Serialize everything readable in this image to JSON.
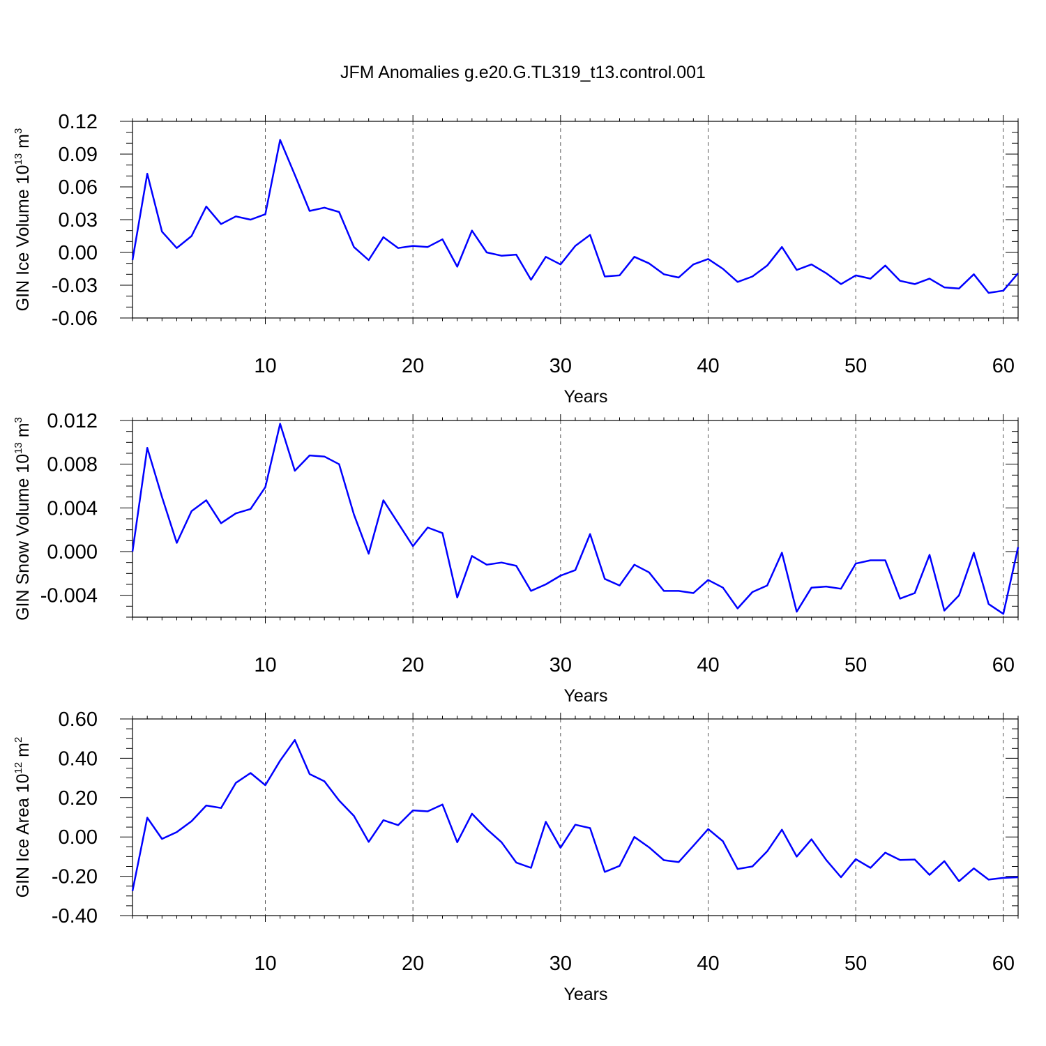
{
  "title": "JFM Anomalies g.e20.G.TL319_t13.control.001",
  "colors": {
    "line": "#0000ff",
    "axis": "#000000",
    "grid": "#555555"
  },
  "chart_data": [
    {
      "type": "line",
      "id": "ice-volume",
      "ylabel_main": "GIN Ice Volume 10",
      "ylabel_exp": "13",
      "ylabel_unit": " m",
      "ylabel_unit_exp": "3",
      "xlabel": "Years",
      "xlim": [
        1,
        61
      ],
      "ylim": [
        -0.06,
        0.12
      ],
      "x_ticks": [
        10,
        20,
        30,
        40,
        50,
        60
      ],
      "x_tick_labels": [
        "10",
        "20",
        "30",
        "40",
        "50",
        "60"
      ],
      "y_ticks": [
        -0.06,
        -0.03,
        0.0,
        0.03,
        0.06,
        0.09,
        0.12
      ],
      "y_tick_labels": [
        "-0.06",
        "-0.03",
        "0.00",
        "0.03",
        "0.06",
        "0.09",
        "0.12"
      ],
      "y_minor_step": 0.01,
      "grid": "vertical dashed",
      "series": [
        {
          "name": "GIN Ice Volume",
          "values": [
            -0.007,
            0.072,
            0.019,
            0.004,
            0.015,
            0.042,
            0.026,
            0.033,
            0.03,
            0.035,
            0.103,
            0.071,
            0.038,
            0.041,
            0.037,
            0.005,
            -0.007,
            0.014,
            0.004,
            0.006,
            0.005,
            0.012,
            -0.013,
            0.02,
            0.0,
            -0.003,
            -0.002,
            -0.025,
            -0.004,
            -0.011,
            0.006,
            0.016,
            -0.022,
            -0.021,
            -0.004,
            -0.01,
            -0.02,
            -0.023,
            -0.011,
            -0.006,
            -0.015,
            -0.027,
            -0.022,
            -0.012,
            0.005,
            -0.016,
            -0.011,
            -0.019,
            -0.029,
            -0.021,
            -0.024,
            -0.012,
            -0.026,
            -0.029,
            -0.024,
            -0.032,
            -0.033,
            -0.02,
            -0.037,
            -0.035,
            -0.019
          ]
        }
      ]
    },
    {
      "type": "line",
      "id": "snow-volume",
      "ylabel_main": "GIN Snow Volume 10",
      "ylabel_exp": "13",
      "ylabel_unit": " m",
      "ylabel_unit_exp": "3",
      "xlabel": "Years",
      "xlim": [
        1,
        61
      ],
      "ylim": [
        -0.006,
        0.012
      ],
      "x_ticks": [
        10,
        20,
        30,
        40,
        50,
        60
      ],
      "x_tick_labels": [
        "10",
        "20",
        "30",
        "40",
        "50",
        "60"
      ],
      "y_ticks": [
        -0.004,
        0.0,
        0.004,
        0.008,
        0.012
      ],
      "y_tick_labels": [
        "-0.004",
        "0.000",
        "0.004",
        "0.008",
        "0.012"
      ],
      "y_minor_step": 0.001,
      "grid": "vertical dashed",
      "series": [
        {
          "name": "GIN Snow Volume",
          "values": [
            0.0,
            0.0095,
            0.005,
            0.0008,
            0.0037,
            0.0047,
            0.0026,
            0.0035,
            0.0039,
            0.0059,
            0.0117,
            0.0074,
            0.0088,
            0.0087,
            0.008,
            0.0034,
            -0.0002,
            0.0047,
            0.0026,
            0.0005,
            0.0022,
            0.0017,
            -0.0042,
            -0.0004,
            -0.0012,
            -0.001,
            -0.0013,
            -0.0036,
            -0.003,
            -0.0022,
            -0.0017,
            0.0016,
            -0.0025,
            -0.0031,
            -0.0012,
            -0.0019,
            -0.0036,
            -0.0036,
            -0.0038,
            -0.0026,
            -0.0033,
            -0.0052,
            -0.0037,
            -0.0031,
            -0.0001,
            -0.0055,
            -0.0033,
            -0.0032,
            -0.0034,
            -0.0011,
            -0.0008,
            -0.0008,
            -0.0043,
            -0.0038,
            -0.0003,
            -0.0054,
            -0.004,
            -0.0001,
            -0.0048,
            -0.0057,
            0.0004
          ]
        }
      ]
    },
    {
      "type": "line",
      "id": "ice-area",
      "ylabel_main": "GIN Ice Area 10",
      "ylabel_exp": "12",
      "ylabel_unit": " m",
      "ylabel_unit_exp": "2",
      "xlabel": "Years",
      "xlim": [
        1,
        61
      ],
      "ylim": [
        -0.4,
        0.6
      ],
      "x_ticks": [
        10,
        20,
        30,
        40,
        50,
        60
      ],
      "x_tick_labels": [
        "10",
        "20",
        "30",
        "40",
        "50",
        "60"
      ],
      "y_ticks": [
        -0.4,
        -0.2,
        0.0,
        0.2,
        0.4,
        0.6
      ],
      "y_tick_labels": [
        "-0.40",
        "-0.20",
        "0.00",
        "0.20",
        "0.40",
        "0.60"
      ],
      "y_minor_step": 0.05,
      "grid": "vertical dashed",
      "series": [
        {
          "name": "GIN Ice Area",
          "values": [
            -0.275,
            0.098,
            -0.01,
            0.025,
            0.08,
            0.16,
            0.147,
            0.275,
            0.325,
            0.263,
            0.388,
            0.493,
            0.32,
            0.283,
            0.185,
            0.107,
            -0.025,
            0.085,
            0.06,
            0.135,
            0.13,
            0.165,
            -0.027,
            0.118,
            0.04,
            -0.027,
            -0.13,
            -0.157,
            0.077,
            -0.055,
            0.062,
            0.045,
            -0.178,
            -0.147,
            0.0,
            -0.053,
            -0.118,
            -0.128,
            -0.045,
            0.04,
            -0.022,
            -0.163,
            -0.15,
            -0.073,
            0.037,
            -0.1,
            -0.012,
            -0.117,
            -0.205,
            -0.113,
            -0.157,
            -0.08,
            -0.117,
            -0.115,
            -0.193,
            -0.123,
            -0.225,
            -0.16,
            -0.217,
            -0.208,
            -0.205
          ]
        }
      ]
    }
  ]
}
